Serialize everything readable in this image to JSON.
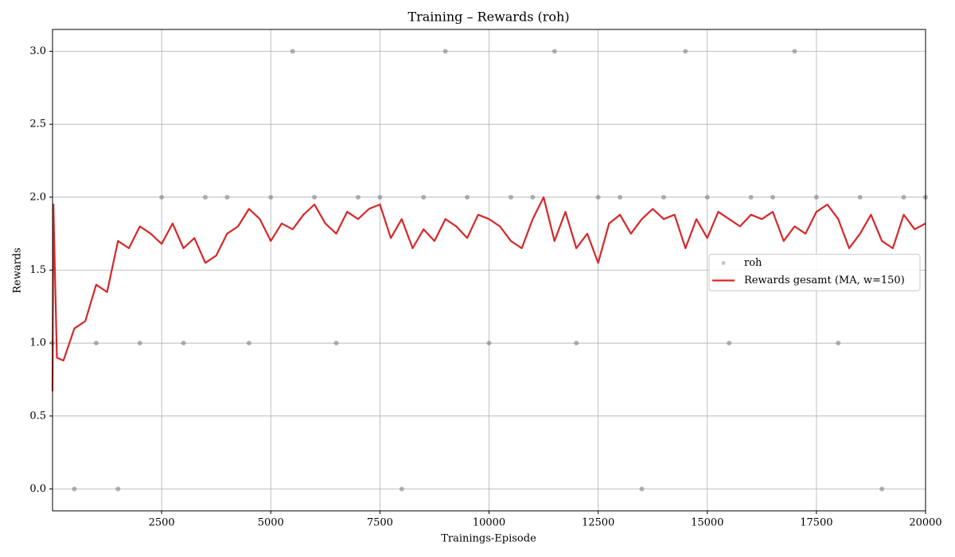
{
  "chart_data": {
    "type": "line",
    "title": "Training – Rewards (roh)",
    "x_label": "Trainings-Episode",
    "y_label": "Rewards",
    "xlim": [
      0,
      20000
    ],
    "ylim": [
      -0.15,
      3.15
    ],
    "xticks": [
      2500,
      5000,
      7500,
      10000,
      12500,
      15000,
      17500,
      20000
    ],
    "yticks": [
      {
        "value": 0,
        "label": "0.0"
      },
      0.5,
      {
        "value": 1,
        "label": "1.0"
      },
      1.5,
      {
        "value": 2,
        "label": "2.0"
      },
      2.5,
      {
        "value": 3,
        "label": "3.0"
      }
    ],
    "grid": true,
    "legend_loc": "center right",
    "series": [
      {
        "name": "roh",
        "type": "scatter",
        "color": "#c8c8c8",
        "x": [
          0,
          500,
          1000,
          1500,
          2000,
          2500,
          3000,
          3500,
          4000,
          4500,
          5000,
          5500,
          6000,
          6500,
          7000,
          7500,
          8000,
          8500,
          9000,
          9500,
          10000,
          10500,
          11000,
          11500,
          12000,
          12500,
          13000,
          13500,
          14000,
          14500,
          15000,
          15500,
          16000,
          16500,
          17000,
          17500,
          18000,
          18500,
          19000,
          19500,
          20000
        ],
        "values": [
          1,
          0,
          1,
          0,
          1,
          2,
          1,
          2,
          2,
          1,
          2,
          3,
          2,
          1,
          2,
          2,
          0,
          2,
          3,
          2,
          1,
          2,
          2,
          3,
          1,
          2,
          2,
          0,
          2,
          3,
          2,
          1,
          2,
          2,
          3,
          2,
          1,
          2,
          0,
          2,
          2
        ]
      },
      {
        "name": "Rewards gesamt (MA, w=150)",
        "type": "line",
        "color": "#d62728",
        "x": [
          0,
          20,
          100,
          250,
          500,
          750,
          1000,
          1250,
          1500,
          1750,
          2000,
          2250,
          2500,
          2750,
          3000,
          3250,
          3500,
          3750,
          4000,
          4250,
          4500,
          4750,
          5000,
          5250,
          5500,
          5750,
          6000,
          6250,
          6500,
          6750,
          7000,
          7250,
          7500,
          7750,
          8000,
          8250,
          8500,
          8750,
          9000,
          9250,
          9500,
          9750,
          10000,
          10250,
          10500,
          10750,
          11000,
          11250,
          11500,
          11750,
          12000,
          12250,
          12500,
          12750,
          13000,
          13250,
          13500,
          13750,
          14000,
          14250,
          14500,
          14750,
          15000,
          15250,
          15500,
          15750,
          16000,
          16250,
          16500,
          16750,
          17000,
          17250,
          17500,
          17750,
          18000,
          18250,
          18500,
          18750,
          19000,
          19250,
          19500,
          19750,
          20000
        ],
        "values": [
          0.67,
          1.95,
          0.9,
          0.88,
          1.1,
          1.15,
          1.4,
          1.35,
          1.7,
          1.65,
          1.8,
          1.75,
          1.68,
          1.82,
          1.65,
          1.72,
          1.55,
          1.6,
          1.75,
          1.8,
          1.92,
          1.85,
          1.7,
          1.82,
          1.78,
          1.88,
          1.95,
          1.82,
          1.75,
          1.9,
          1.85,
          1.92,
          1.95,
          1.72,
          1.85,
          1.65,
          1.78,
          1.7,
          1.85,
          1.8,
          1.72,
          1.88,
          1.85,
          1.8,
          1.7,
          1.65,
          1.85,
          2.0,
          1.7,
          1.9,
          1.65,
          1.75,
          1.55,
          1.82,
          1.88,
          1.75,
          1.85,
          1.92,
          1.85,
          1.88,
          1.65,
          1.85,
          1.72,
          1.9,
          1.85,
          1.8,
          1.88,
          1.85,
          1.9,
          1.7,
          1.8,
          1.75,
          1.9,
          1.95,
          1.85,
          1.65,
          1.75,
          1.88,
          1.7,
          1.65,
          1.88,
          1.78,
          1.82
        ]
      }
    ]
  }
}
